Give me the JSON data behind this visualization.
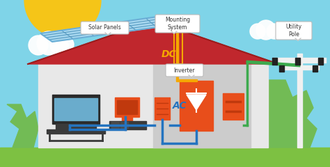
{
  "bg_sky_color": "#7FD4E8",
  "bg_ground_color": "#7DC142",
  "sun_color": "#F5C518",
  "house_wall_color": "#E8E8E8",
  "house_roof_color": "#C0272D",
  "solar_panel_bg": "#A8D8F0",
  "solar_panel_frame": "#6AAED6",
  "solar_panel_line": "#5599C0",
  "dc_wire_color": "#F5A800",
  "ac_wire_color": "#2474C0",
  "grid_wire_color": "#3DAA4E",
  "inverter_color": "#E84E1B",
  "box_orange_color": "#E84E1B",
  "label_bg": "#FFFFFF",
  "label_text_color": "#333333",
  "dc_label_color": "#F5A800",
  "ac_label_color": "#2474C0",
  "pole_color": "#F0F0F0",
  "tree_color": "#72BB55",
  "tree_dark": "#5A9E40",
  "cloud_color": "#FFFFFF",
  "tv_color": "#303030",
  "desk_color": "#404040",
  "interior_dark": "#CCCCCC",
  "labels": {
    "solar_panels": "Solar Panels",
    "mounting": "Mounting\nSystem",
    "inverter": "Inverter",
    "utility_pole": "Utility\nPole",
    "dc": "DC",
    "ac": "AC"
  }
}
